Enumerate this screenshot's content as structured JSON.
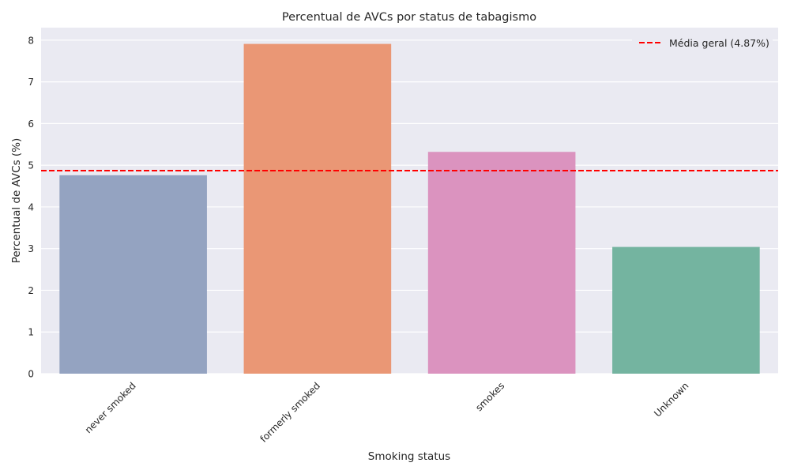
{
  "chart_data": {
    "type": "bar",
    "title": "Percentual de AVCs por status de tabagismo",
    "xlabel": "Smoking status",
    "ylabel": "Percentual de AVCs (%)",
    "categories": [
      "never smoked",
      "formerly smoked",
      "smokes",
      "Unknown"
    ],
    "values": [
      4.76,
      7.91,
      5.32,
      3.04
    ],
    "colors": [
      "#94a3c1",
      "#ea9775",
      "#db93bf",
      "#74b4a0"
    ],
    "ylim": [
      0,
      8.3
    ],
    "yticks": [
      "0",
      "1",
      "2",
      "3",
      "4",
      "5",
      "6",
      "7",
      "8"
    ],
    "grid": true,
    "background": "#eaeaf2",
    "reference_line": {
      "value": 4.87,
      "label": "Média geral (4.87%)",
      "color": "#ff0000",
      "style": "dashed"
    },
    "legend": {
      "placement": "top-right"
    }
  }
}
